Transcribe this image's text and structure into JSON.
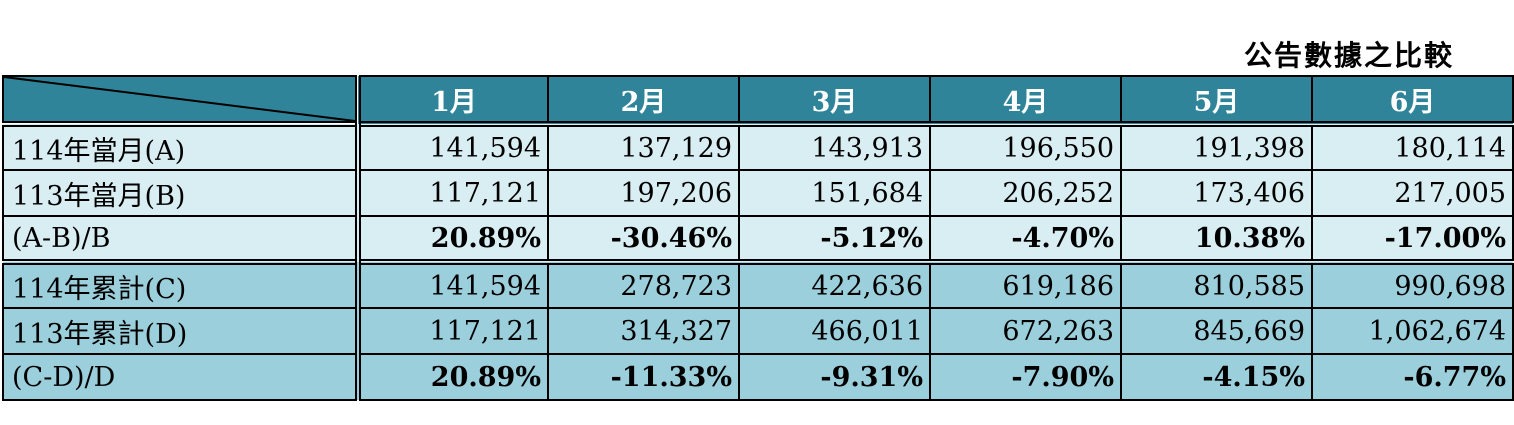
{
  "title": "公告數據之比較",
  "columns": [
    "1月",
    "2月",
    "3月",
    "4月",
    "5月",
    "6月"
  ],
  "rows": [
    {
      "label": "114年當月(A)",
      "values": [
        "141,594",
        "137,129",
        "143,913",
        "196,550",
        "191,398",
        "180,114"
      ]
    },
    {
      "label": "113年當月(B)",
      "values": [
        "117,121",
        "197,206",
        "151,684",
        "206,252",
        "173,406",
        "217,005"
      ]
    },
    {
      "label": "(A-B)/B",
      "values": [
        "20.89%",
        "-30.46%",
        "-5.12%",
        "-4.70%",
        "10.38%",
        "-17.00%"
      ]
    },
    {
      "label": "114年累計(C)",
      "values": [
        "141,594",
        "278,723",
        "422,636",
        "619,186",
        "810,585",
        "990,698"
      ]
    },
    {
      "label": "113年累計(D)",
      "values": [
        "117,121",
        "314,327",
        "466,011",
        "672,263",
        "845,669",
        "1,062,674"
      ]
    },
    {
      "label": "(C-D)/D",
      "values": [
        "20.89%",
        "-11.33%",
        "-9.31%",
        "-7.90%",
        "-4.15%",
        "-6.77%"
      ]
    }
  ],
  "colors": {
    "header": "#2f8499",
    "group1": "#d9eef3",
    "group2": "#9ccfdc"
  }
}
